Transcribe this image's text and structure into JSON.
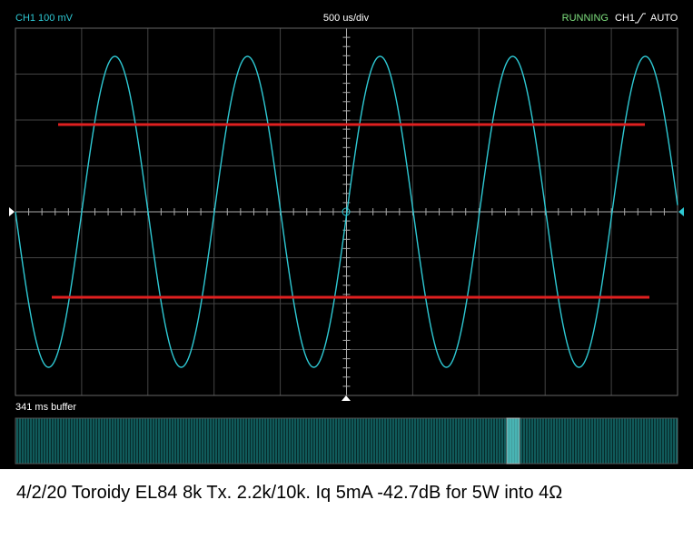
{
  "header": {
    "channel": "CH1 100 mV",
    "timebase": "500 us/div",
    "status": "RUNNING",
    "trigger_channel": "CH1",
    "trigger_mode": "AUTO"
  },
  "buffer_label": "341 ms buffer",
  "caption": "4/2/20 Toroidy EL84 8k Tx. 2.2k/10k. Iq 5mA -42.7dB for 5W into 4Ω"
}
